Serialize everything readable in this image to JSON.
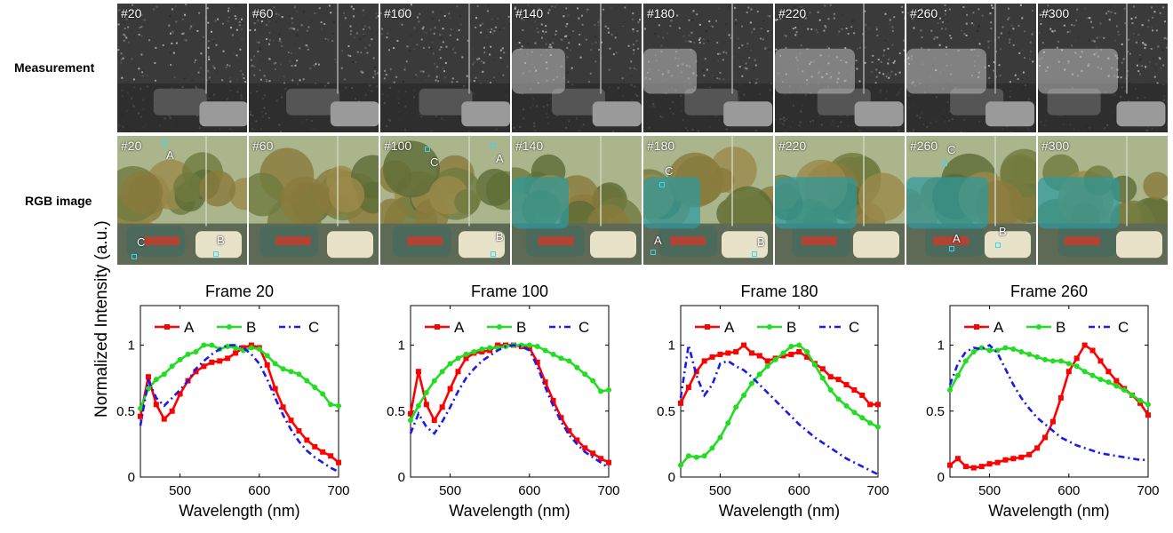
{
  "rows": {
    "measurement_label": "Measurement",
    "rgb_label": "RGB image"
  },
  "frames": [
    "#20",
    "#60",
    "#100",
    "#140",
    "#180",
    "#220",
    "#260",
    "#300"
  ],
  "rgb_point_labels": [
    [
      {
        "text": "A"
      },
      {
        "text": "B"
      },
      {
        "text": "C"
      }
    ],
    [],
    [
      {
        "text": "C"
      },
      {
        "text": "A"
      },
      {
        "text": "B"
      }
    ],
    [],
    [
      {
        "text": "C"
      },
      {
        "text": "A"
      },
      {
        "text": "B"
      }
    ],
    [],
    [
      {
        "text": "C"
      },
      {
        "text": "A"
      },
      {
        "text": "B"
      }
    ],
    []
  ],
  "colors": {
    "A": "#ff0000",
    "B": "#22dd22",
    "C": "#1a1aee",
    "marker": "#38d6f0"
  },
  "shared_ylabel": "Normalized Intensity (a.u.)",
  "chart_data": [
    {
      "type": "line",
      "title": "Frame 20",
      "xlabel": "Wavelength (nm)",
      "ylabel": "Normalized Intensity (a.u.)",
      "xlim": [
        450,
        700
      ],
      "ylim": [
        0,
        1.3
      ],
      "xticks": [
        500,
        600,
        700
      ],
      "yticks": [
        0,
        0.5,
        1
      ],
      "xtick_labels": [
        "500",
        "600",
        "700"
      ],
      "ytick_labels": [
        "0",
        "0.5",
        "1"
      ],
      "legend": "top",
      "grid": false,
      "series": [
        {
          "name": "A",
          "style": "solid-square",
          "x": [
            450,
            460,
            470,
            480,
            490,
            500,
            510,
            520,
            530,
            540,
            550,
            560,
            570,
            580,
            590,
            600,
            610,
            620,
            630,
            640,
            650,
            660,
            670,
            680,
            690,
            700
          ],
          "y": [
            0.46,
            0.76,
            0.55,
            0.44,
            0.5,
            0.63,
            0.73,
            0.8,
            0.84,
            0.87,
            0.88,
            0.9,
            0.94,
            0.98,
            1.0,
            0.98,
            0.85,
            0.67,
            0.53,
            0.43,
            0.35,
            0.28,
            0.23,
            0.19,
            0.16,
            0.11
          ]
        },
        {
          "name": "B",
          "style": "solid-circle",
          "x": [
            450,
            460,
            470,
            480,
            490,
            500,
            510,
            520,
            530,
            540,
            550,
            560,
            570,
            580,
            590,
            600,
            610,
            620,
            630,
            640,
            650,
            660,
            670,
            680,
            690,
            700
          ],
          "y": [
            0.52,
            0.67,
            0.74,
            0.78,
            0.84,
            0.89,
            0.93,
            0.95,
            1.0,
            1.0,
            0.97,
            0.99,
            0.98,
            0.96,
            0.98,
            0.97,
            0.92,
            0.86,
            0.82,
            0.8,
            0.78,
            0.73,
            0.68,
            0.63,
            0.55,
            0.54
          ]
        },
        {
          "name": "C",
          "style": "dash-dot",
          "x": [
            450,
            460,
            470,
            480,
            490,
            500,
            510,
            520,
            530,
            540,
            550,
            560,
            570,
            580,
            590,
            600,
            610,
            620,
            630,
            640,
            650,
            660,
            670,
            680,
            690,
            700
          ],
          "y": [
            0.39,
            0.73,
            0.6,
            0.54,
            0.6,
            0.66,
            0.73,
            0.82,
            0.88,
            0.93,
            0.97,
            1.0,
            1.0,
            0.98,
            0.93,
            0.86,
            0.74,
            0.6,
            0.47,
            0.36,
            0.27,
            0.2,
            0.15,
            0.11,
            0.07,
            0.04
          ]
        }
      ]
    },
    {
      "type": "line",
      "title": "Frame 100",
      "xlabel": "Wavelength (nm)",
      "xlim": [
        450,
        700
      ],
      "ylim": [
        0,
        1.3
      ],
      "xticks": [
        500,
        600,
        700
      ],
      "yticks": [
        0,
        0.5,
        1
      ],
      "xtick_labels": [
        "500",
        "600",
        "700"
      ],
      "ytick_labels": [
        "0",
        "0.5",
        "1"
      ],
      "legend": "top",
      "grid": false,
      "series": [
        {
          "name": "A",
          "style": "solid-square",
          "x": [
            450,
            460,
            470,
            480,
            490,
            500,
            510,
            520,
            530,
            540,
            550,
            560,
            570,
            580,
            590,
            600,
            610,
            620,
            630,
            640,
            650,
            660,
            670,
            680,
            690,
            700
          ],
          "y": [
            0.48,
            0.8,
            0.55,
            0.43,
            0.53,
            0.67,
            0.8,
            0.9,
            0.94,
            0.95,
            0.96,
            1.0,
            1.0,
            1.0,
            0.99,
            0.98,
            0.87,
            0.72,
            0.58,
            0.45,
            0.35,
            0.28,
            0.22,
            0.18,
            0.14,
            0.11
          ]
        },
        {
          "name": "B",
          "style": "solid-circle",
          "x": [
            450,
            460,
            470,
            480,
            490,
            500,
            510,
            520,
            530,
            540,
            550,
            560,
            570,
            580,
            590,
            600,
            610,
            620,
            630,
            640,
            650,
            660,
            670,
            680,
            690,
            700
          ],
          "y": [
            0.43,
            0.54,
            0.64,
            0.73,
            0.8,
            0.86,
            0.9,
            0.93,
            0.95,
            0.97,
            0.98,
            0.98,
            0.99,
            1.0,
            1.0,
            1.0,
            0.99,
            0.96,
            0.93,
            0.9,
            0.88,
            0.83,
            0.78,
            0.73,
            0.65,
            0.66
          ]
        },
        {
          "name": "C",
          "style": "dash-dot",
          "x": [
            450,
            460,
            470,
            480,
            490,
            500,
            510,
            520,
            530,
            540,
            550,
            560,
            570,
            580,
            590,
            600,
            610,
            620,
            630,
            640,
            650,
            660,
            670,
            680,
            690,
            700
          ],
          "y": [
            0.33,
            0.48,
            0.38,
            0.33,
            0.42,
            0.53,
            0.65,
            0.75,
            0.82,
            0.88,
            0.92,
            0.96,
            0.99,
            1.0,
            0.99,
            0.96,
            0.84,
            0.68,
            0.54,
            0.42,
            0.32,
            0.25,
            0.19,
            0.15,
            0.11,
            0.07
          ]
        }
      ]
    },
    {
      "type": "line",
      "title": "Frame 180",
      "xlabel": "Wavelength (nm)",
      "xlim": [
        450,
        700
      ],
      "ylim": [
        0,
        1.3
      ],
      "xticks": [
        500,
        600,
        700
      ],
      "yticks": [
        0,
        0.5,
        1
      ],
      "xtick_labels": [
        "500",
        "600",
        "700"
      ],
      "ytick_labels": [
        "0",
        "0.5",
        "1"
      ],
      "legend": "top",
      "grid": false,
      "series": [
        {
          "name": "A",
          "style": "solid-square",
          "x": [
            450,
            460,
            470,
            480,
            490,
            500,
            510,
            520,
            530,
            540,
            550,
            560,
            570,
            580,
            590,
            600,
            610,
            620,
            630,
            640,
            650,
            660,
            670,
            680,
            690,
            700
          ],
          "y": [
            0.56,
            0.68,
            0.8,
            0.88,
            0.91,
            0.93,
            0.94,
            0.95,
            1.0,
            0.94,
            0.92,
            0.88,
            0.9,
            0.92,
            0.93,
            0.95,
            0.91,
            0.86,
            0.82,
            0.76,
            0.74,
            0.7,
            0.66,
            0.62,
            0.55,
            0.55
          ]
        },
        {
          "name": "B",
          "style": "solid-circle",
          "x": [
            450,
            460,
            470,
            480,
            490,
            500,
            510,
            520,
            530,
            540,
            550,
            560,
            570,
            580,
            590,
            600,
            610,
            620,
            630,
            640,
            650,
            660,
            670,
            680,
            690,
            700
          ],
          "y": [
            0.09,
            0.16,
            0.15,
            0.16,
            0.22,
            0.3,
            0.41,
            0.53,
            0.62,
            0.71,
            0.78,
            0.84,
            0.89,
            0.94,
            0.99,
            1.0,
            0.95,
            0.85,
            0.75,
            0.66,
            0.59,
            0.54,
            0.49,
            0.45,
            0.41,
            0.38
          ]
        },
        {
          "name": "C",
          "style": "dash-dot",
          "x": [
            450,
            460,
            470,
            480,
            490,
            500,
            510,
            520,
            530,
            540,
            550,
            560,
            570,
            580,
            590,
            600,
            610,
            620,
            630,
            640,
            650,
            660,
            670,
            680,
            690,
            700
          ],
          "y": [
            0.6,
            1.0,
            0.77,
            0.62,
            0.7,
            0.86,
            0.88,
            0.84,
            0.81,
            0.76,
            0.7,
            0.64,
            0.58,
            0.52,
            0.46,
            0.4,
            0.35,
            0.3,
            0.26,
            0.22,
            0.18,
            0.14,
            0.11,
            0.08,
            0.05,
            0.02
          ]
        }
      ]
    },
    {
      "type": "line",
      "title": "Frame 260",
      "xlabel": "Wavelength (nm)",
      "xlim": [
        450,
        700
      ],
      "ylim": [
        0,
        1.3
      ],
      "xticks": [
        500,
        600,
        700
      ],
      "yticks": [
        0,
        0.5,
        1
      ],
      "xtick_labels": [
        "500",
        "600",
        "700"
      ],
      "ytick_labels": [
        "0",
        "0.5",
        "1"
      ],
      "legend": "top",
      "grid": false,
      "series": [
        {
          "name": "A",
          "style": "solid-square",
          "x": [
            450,
            460,
            470,
            480,
            490,
            500,
            510,
            520,
            530,
            540,
            550,
            560,
            570,
            580,
            590,
            600,
            610,
            620,
            630,
            640,
            650,
            660,
            670,
            680,
            690,
            700
          ],
          "y": [
            0.09,
            0.14,
            0.08,
            0.07,
            0.08,
            0.1,
            0.11,
            0.13,
            0.14,
            0.15,
            0.17,
            0.22,
            0.3,
            0.42,
            0.6,
            0.8,
            0.9,
            1.0,
            0.96,
            0.88,
            0.8,
            0.73,
            0.67,
            0.62,
            0.56,
            0.47
          ]
        },
        {
          "name": "B",
          "style": "solid-circle",
          "x": [
            450,
            460,
            470,
            480,
            490,
            500,
            510,
            520,
            530,
            540,
            550,
            560,
            570,
            580,
            590,
            600,
            610,
            620,
            630,
            640,
            650,
            660,
            670,
            680,
            690,
            700
          ],
          "y": [
            0.66,
            0.77,
            0.88,
            0.95,
            0.98,
            0.96,
            0.96,
            0.98,
            0.97,
            0.95,
            0.93,
            0.91,
            0.89,
            0.88,
            0.88,
            0.86,
            0.84,
            0.8,
            0.77,
            0.74,
            0.72,
            0.69,
            0.66,
            0.62,
            0.58,
            0.55
          ]
        },
        {
          "name": "C",
          "style": "dash-dot",
          "x": [
            450,
            460,
            470,
            480,
            490,
            500,
            510,
            520,
            530,
            540,
            550,
            560,
            570,
            580,
            590,
            600,
            610,
            620,
            630,
            640,
            650,
            660,
            670,
            680,
            690,
            700
          ],
          "y": [
            0.7,
            0.86,
            0.95,
            0.98,
            0.97,
            1.0,
            0.94,
            0.82,
            0.7,
            0.6,
            0.52,
            0.45,
            0.4,
            0.35,
            0.3,
            0.27,
            0.24,
            0.22,
            0.2,
            0.18,
            0.17,
            0.16,
            0.15,
            0.14,
            0.13,
            0.13
          ]
        }
      ]
    }
  ]
}
